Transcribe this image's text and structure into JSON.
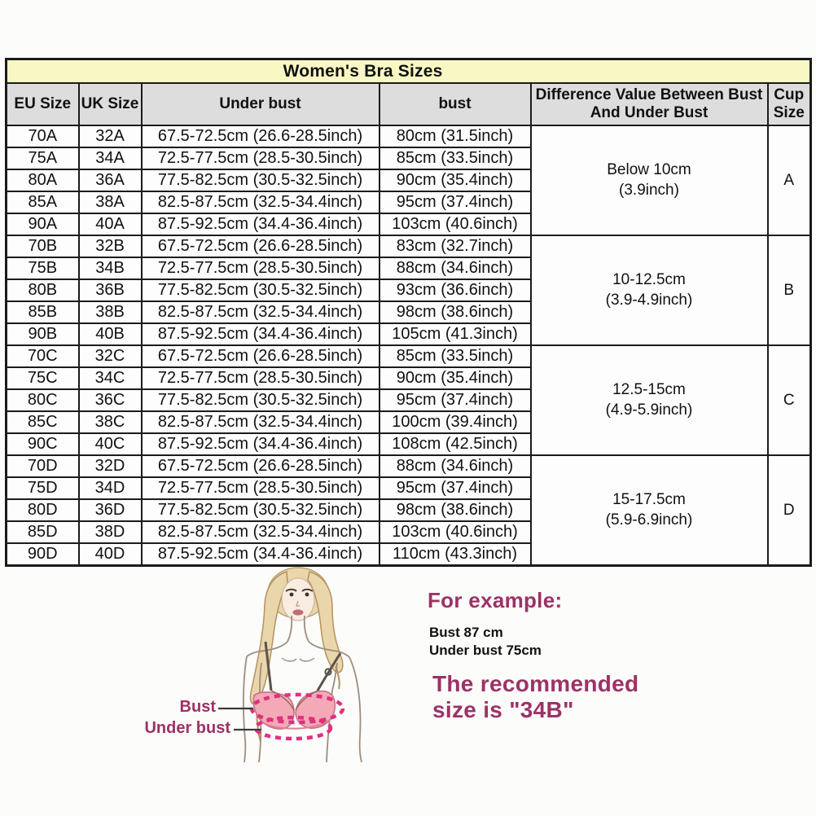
{
  "chart_data": {
    "type": "table",
    "title": "Women's Bra Sizes",
    "columns": [
      "EU Size",
      "UK Size",
      "Under bust",
      "bust",
      "Difference Value Between Bust And Under Bust",
      "Cup Size"
    ],
    "groups": [
      {
        "cup": "A",
        "difference": "Below 10cm\n(3.9inch)",
        "rows": [
          [
            "70A",
            "32A",
            "67.5-72.5cm (26.6-28.5inch)",
            "80cm (31.5inch)"
          ],
          [
            "75A",
            "34A",
            "72.5-77.5cm (28.5-30.5inch)",
            "85cm (33.5inch)"
          ],
          [
            "80A",
            "36A",
            "77.5-82.5cm (30.5-32.5inch)",
            "90cm (35.4inch)"
          ],
          [
            "85A",
            "38A",
            "82.5-87.5cm (32.5-34.4inch)",
            "95cm (37.4inch)"
          ],
          [
            "90A",
            "40A",
            "87.5-92.5cm (34.4-36.4inch)",
            "103cm (40.6inch)"
          ]
        ]
      },
      {
        "cup": "B",
        "difference": "10-12.5cm\n(3.9-4.9inch)",
        "rows": [
          [
            "70B",
            "32B",
            "67.5-72.5cm (26.6-28.5inch)",
            "83cm (32.7inch)"
          ],
          [
            "75B",
            "34B",
            "72.5-77.5cm (28.5-30.5inch)",
            "88cm (34.6inch)"
          ],
          [
            "80B",
            "36B",
            "77.5-82.5cm (30.5-32.5inch)",
            "93cm (36.6inch)"
          ],
          [
            "85B",
            "38B",
            "82.5-87.5cm (32.5-34.4inch)",
            "98cm (38.6inch)"
          ],
          [
            "90B",
            "40B",
            "87.5-92.5cm (34.4-36.4inch)",
            "105cm (41.3inch)"
          ]
        ]
      },
      {
        "cup": "C",
        "difference": "12.5-15cm\n(4.9-5.9inch)",
        "rows": [
          [
            "70C",
            "32C",
            "67.5-72.5cm (26.6-28.5inch)",
            "85cm (33.5inch)"
          ],
          [
            "75C",
            "34C",
            "72.5-77.5cm (28.5-30.5inch)",
            "90cm (35.4inch)"
          ],
          [
            "80C",
            "36C",
            "77.5-82.5cm (30.5-32.5inch)",
            "95cm (37.4inch)"
          ],
          [
            "85C",
            "38C",
            "82.5-87.5cm (32.5-34.4inch)",
            "100cm (39.4inch)"
          ],
          [
            "90C",
            "40C",
            "87.5-92.5cm (34.4-36.4inch)",
            "108cm (42.5inch)"
          ]
        ]
      },
      {
        "cup": "D",
        "difference": "15-17.5cm\n(5.9-6.9inch)",
        "rows": [
          [
            "70D",
            "32D",
            "67.5-72.5cm (26.6-28.5inch)",
            "88cm (34.6inch)"
          ],
          [
            "75D",
            "34D",
            "72.5-77.5cm (28.5-30.5inch)",
            "95cm (37.4inch)"
          ],
          [
            "80D",
            "36D",
            "77.5-82.5cm (30.5-32.5inch)",
            "98cm (38.6inch)"
          ],
          [
            "85D",
            "38D",
            "82.5-87.5cm (32.5-34.4inch)",
            "103cm (40.6inch)"
          ],
          [
            "90D",
            "40D",
            "87.5-92.5cm (34.4-36.4inch)",
            "110cm (43.3inch)"
          ]
        ]
      }
    ]
  },
  "diagram": {
    "bust_label": "Bust",
    "under_bust_label": "Under bust"
  },
  "example": {
    "heading": "For example:",
    "measurements": [
      "Bust 87 cm",
      "Under bust 75cm"
    ],
    "result_lines": [
      "The recommended",
      "size is \"34B\""
    ]
  },
  "colors": {
    "title_bg": "#f9f8c4",
    "header_bg": "#dddddd",
    "border": "#1b1b1b",
    "accent_purple": "#9c3266",
    "tape_magenta": "#e0307f",
    "bra_pink": "#f3aab6"
  }
}
